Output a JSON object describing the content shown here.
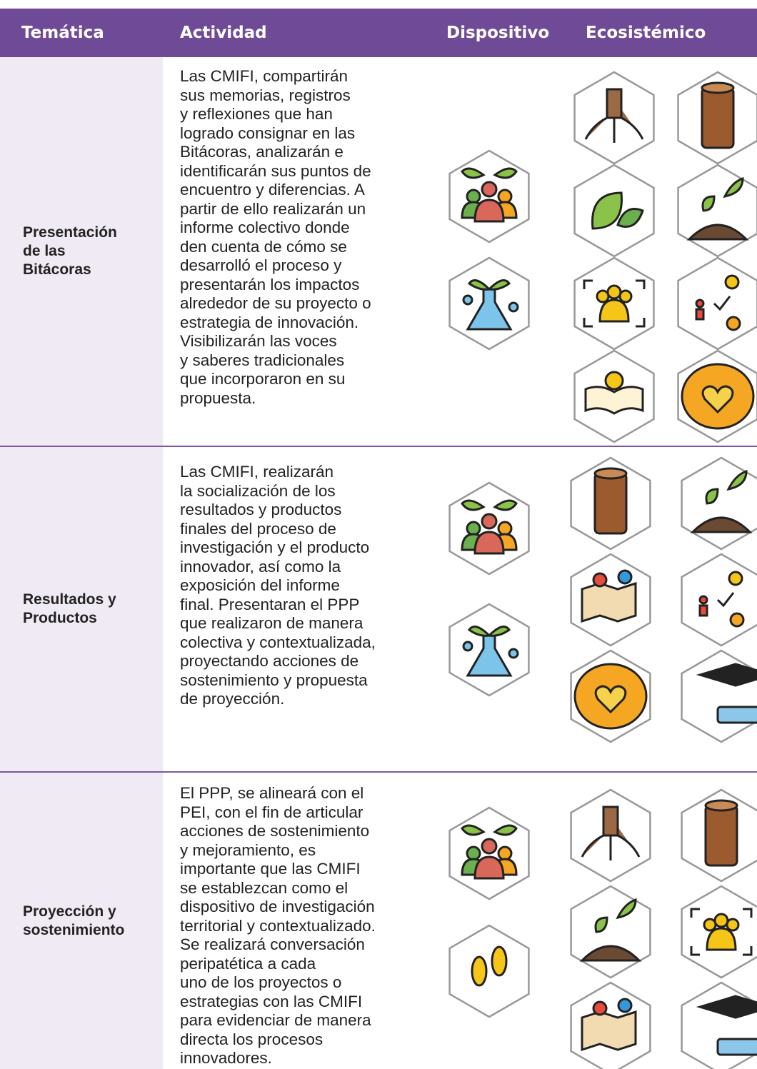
{
  "header": {
    "tematica": "Temática",
    "actividad": "Actividad",
    "dispositivo": "Dispositivo",
    "ecosistemico": "Ecosistémico"
  },
  "rows": [
    {
      "tematica_lines": [
        "Presentación",
        "de las",
        "Bitácoras"
      ],
      "actividad_lines": [
        "Las CMIFI, compartirán",
        "sus memorias, registros",
        "y reflexiones que han",
        "logrado consignar en las",
        "Bitácoras, analizarán e",
        "identificarán sus puntos de",
        "encuentro y diferencias. A",
        "partir de ello realizarán un",
        "informe colectivo donde",
        "den cuenta de cómo se",
        "desarrolló el proceso y",
        "presentarán los impactos",
        "alrededor de su proyecto o",
        "estrategia de innovación.",
        "Visibilizarán las voces",
        "y saberes tradicionales",
        "que incorporaron en su",
        "propuesta."
      ]
    },
    {
      "tematica_lines": [
        "Resultados y",
        "Productos"
      ],
      "actividad_lines": [
        "Las CMIFI, realizarán",
        "la socialización de los",
        "resultados y productos",
        "finales del proceso de",
        "investigación y el producto",
        "innovador, así como la",
        "exposición del informe",
        "final. Presentaran el PPP",
        "que realizaron de manera",
        "colectiva y contextualizada,",
        "proyectando acciones de",
        "sostenimiento y propuesta",
        "de proyección."
      ]
    },
    {
      "tematica_lines": [
        "Proyección y",
        "sostenimiento"
      ],
      "actividad_lines": [
        "El PPP, se alineará con el",
        "PEI, con el fin de articular",
        "acciones de sostenimiento",
        "y mejoramiento, es",
        "importante que las CMIFI",
        "se establezcan como el",
        "dispositivo de investigación",
        "territorial y contextualizado.",
        "Se realizará conversación",
        "peripatética a cada",
        "uno de los proyectos o",
        "estrategias con las CMIFI",
        "para evidenciar de manera",
        "directa los procesos",
        "innovadores."
      ]
    }
  ]
}
